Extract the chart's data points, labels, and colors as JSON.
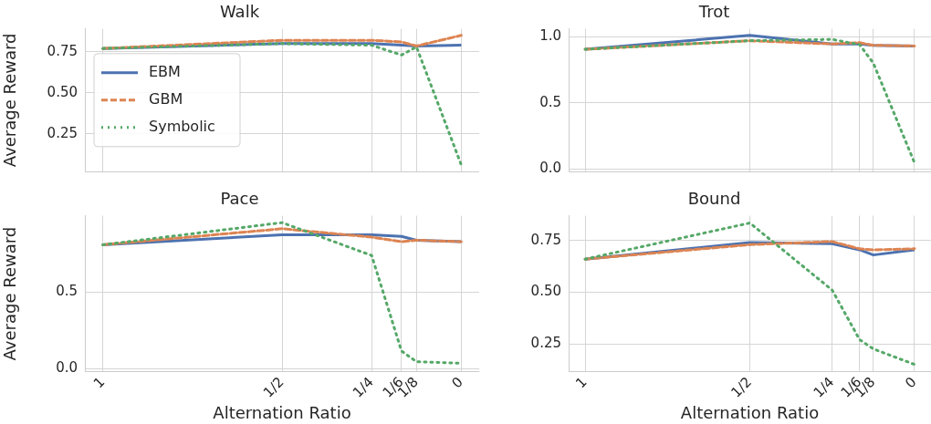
{
  "chart_data": [
    {
      "type": "line",
      "title": "Walk",
      "ylabel": "Average Reward",
      "x": [
        1,
        0.5,
        0.25,
        0.1667,
        0.125,
        0
      ],
      "xlim": [
        1.05,
        -0.05
      ],
      "xticks": [
        {
          "value": 1,
          "label": null
        },
        {
          "value": 0.5,
          "label": null
        },
        {
          "value": 0.25,
          "label": null
        },
        {
          "value": 0.1667,
          "label": null
        },
        {
          "value": 0.125,
          "label": null
        },
        {
          "value": 0,
          "label": null
        }
      ],
      "ylim": [
        0.02,
        0.89
      ],
      "yticks": [
        {
          "value": 0.25,
          "label": "0.25"
        },
        {
          "value": 0.5,
          "label": "0.50"
        },
        {
          "value": 0.75,
          "label": "0.75"
        }
      ],
      "grid": true,
      "legend": "center left",
      "tick_labels": "y",
      "marker": "none",
      "series": [
        {
          "name": "EBM",
          "color": "#4c72b0",
          "line_style": "solid",
          "values": [
            0.77,
            0.8,
            0.8,
            0.79,
            0.785,
            0.79
          ]
        },
        {
          "name": "GBM",
          "color": "#dd8452",
          "line_style": "dashed",
          "values": [
            0.77,
            0.82,
            0.82,
            0.81,
            0.785,
            0.85
          ]
        },
        {
          "name": "Symbolic",
          "color": "#55a868",
          "line_style": "dotted",
          "values": [
            0.77,
            0.8,
            0.79,
            0.73,
            0.78,
            0.06
          ]
        }
      ]
    },
    {
      "type": "line",
      "title": "Trot",
      "x": [
        1,
        0.5,
        0.25,
        0.1667,
        0.125,
        0
      ],
      "xlim": [
        1.05,
        -0.05
      ],
      "xticks": [
        {
          "value": 1,
          "label": null
        },
        {
          "value": 0.5,
          "label": null
        },
        {
          "value": 0.25,
          "label": null
        },
        {
          "value": 0.1667,
          "label": null
        },
        {
          "value": 0.125,
          "label": null
        },
        {
          "value": 0,
          "label": null
        }
      ],
      "ylim": [
        -0.02,
        1.06
      ],
      "yticks": [
        {
          "value": 0,
          "label": "0.0"
        },
        {
          "value": 0.5,
          "label": "0.5"
        },
        {
          "value": 1,
          "label": "1.0"
        }
      ],
      "grid": true,
      "tick_labels": "y",
      "marker": "none",
      "series": [
        {
          "color": "#4c72b0",
          "line_style": "solid",
          "values": [
            0.905,
            1.01,
            0.945,
            0.945,
            0.935,
            0.93
          ]
        },
        {
          "color": "#dd8452",
          "line_style": "dashed",
          "values": [
            0.905,
            0.97,
            0.945,
            0.955,
            0.935,
            0.93
          ]
        },
        {
          "color": "#55a868",
          "line_style": "dotted",
          "values": [
            0.905,
            0.97,
            0.98,
            0.94,
            0.8,
            0.045
          ]
        }
      ]
    },
    {
      "type": "line",
      "title": "Pace",
      "xlabel": "Alternation Ratio",
      "ylabel": "Average Reward",
      "x": [
        1,
        0.5,
        0.25,
        0.1667,
        0.125,
        0
      ],
      "xlim": [
        1.05,
        -0.05
      ],
      "xticks": [
        {
          "value": 1,
          "label": "1"
        },
        {
          "value": 0.5,
          "label": "1/2"
        },
        {
          "value": 0.25,
          "label": "1/4"
        },
        {
          "value": 0.1667,
          "label": "1/6"
        },
        {
          "value": 0.125,
          "label": "1/8"
        },
        {
          "value": 0,
          "label": "0"
        }
      ],
      "ylim": [
        -0.02,
        1.0
      ],
      "yticks": [
        {
          "value": 0,
          "label": "0.0"
        },
        {
          "value": 0.5,
          "label": "0.5"
        }
      ],
      "grid": true,
      "marker": "none",
      "series": [
        {
          "color": "#4c72b0",
          "line_style": "solid",
          "values": [
            0.81,
            0.875,
            0.875,
            0.865,
            0.84,
            0.83
          ]
        },
        {
          "color": "#dd8452",
          "line_style": "dashed",
          "values": [
            0.81,
            0.915,
            0.86,
            0.83,
            0.84,
            0.83
          ]
        },
        {
          "color": "#55a868",
          "line_style": "dotted",
          "values": [
            0.81,
            0.955,
            0.74,
            0.115,
            0.045,
            0.035
          ]
        }
      ]
    },
    {
      "type": "line",
      "title": "Bound",
      "xlabel": "Alternation Ratio",
      "x": [
        1,
        0.5,
        0.25,
        0.1667,
        0.125,
        0
      ],
      "xlim": [
        1.05,
        -0.05
      ],
      "xticks": [
        {
          "value": 1,
          "label": "1"
        },
        {
          "value": 0.5,
          "label": "1/2"
        },
        {
          "value": 0.25,
          "label": "1/4"
        },
        {
          "value": 0.1667,
          "label": "1/6"
        },
        {
          "value": 0.125,
          "label": "1/8"
        },
        {
          "value": 0,
          "label": "0"
        }
      ],
      "ylim": [
        0.115,
        0.87
      ],
      "yticks": [
        {
          "value": 0.25,
          "label": "0.25"
        },
        {
          "value": 0.5,
          "label": "0.50"
        },
        {
          "value": 0.75,
          "label": "0.75"
        }
      ],
      "grid": true,
      "marker": "none",
      "series": [
        {
          "color": "#4c72b0",
          "line_style": "solid",
          "values": [
            0.66,
            0.74,
            0.735,
            0.705,
            0.68,
            0.705
          ]
        },
        {
          "color": "#dd8452",
          "line_style": "dashed",
          "values": [
            0.66,
            0.73,
            0.745,
            0.71,
            0.705,
            0.71
          ]
        },
        {
          "color": "#55a868",
          "line_style": "dotted",
          "values": [
            0.66,
            0.835,
            0.51,
            0.27,
            0.225,
            0.15
          ]
        }
      ]
    }
  ]
}
